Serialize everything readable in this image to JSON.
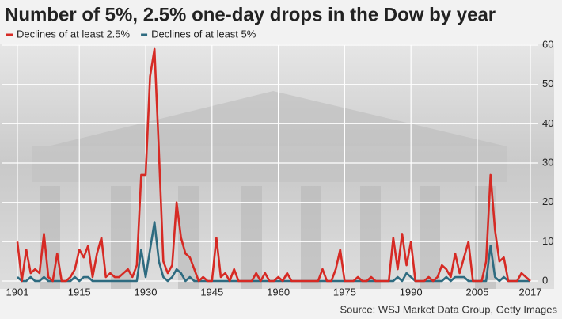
{
  "chart_data": {
    "type": "line",
    "title": "Number of 5%, 2.5% one-day drops in the Dow by year",
    "source": "Source: WSJ Market Data Group, Getty Images",
    "x": [
      1901,
      1902,
      1903,
      1904,
      1905,
      1906,
      1907,
      1908,
      1909,
      1910,
      1911,
      1912,
      1913,
      1914,
      1915,
      1916,
      1917,
      1918,
      1919,
      1920,
      1921,
      1922,
      1923,
      1924,
      1925,
      1926,
      1927,
      1928,
      1929,
      1930,
      1931,
      1932,
      1933,
      1934,
      1935,
      1936,
      1937,
      1938,
      1939,
      1940,
      1941,
      1942,
      1943,
      1944,
      1945,
      1946,
      1947,
      1948,
      1949,
      1950,
      1951,
      1952,
      1953,
      1954,
      1955,
      1956,
      1957,
      1958,
      1959,
      1960,
      1961,
      1962,
      1963,
      1964,
      1965,
      1966,
      1967,
      1968,
      1969,
      1970,
      1971,
      1972,
      1973,
      1974,
      1975,
      1976,
      1977,
      1978,
      1979,
      1980,
      1981,
      1982,
      1983,
      1984,
      1985,
      1986,
      1987,
      1988,
      1989,
      1990,
      1991,
      1992,
      1993,
      1994,
      1995,
      1996,
      1997,
      1998,
      1999,
      2000,
      2001,
      2002,
      2003,
      2004,
      2005,
      2006,
      2007,
      2008,
      2009,
      2010,
      2011,
      2012,
      2013,
      2014,
      2015,
      2016,
      2017
    ],
    "series": [
      {
        "name": "Declines of at least 2.5%",
        "color": "#d62a24",
        "values": [
          10,
          0,
          8,
          2,
          3,
          2,
          12,
          1,
          0,
          7,
          0,
          0,
          1,
          3,
          8,
          6,
          9,
          1,
          7,
          11,
          1,
          2,
          1,
          1,
          2,
          3,
          1,
          4,
          27,
          27,
          52,
          59,
          33,
          5,
          2,
          4,
          20,
          11,
          7,
          6,
          3,
          0,
          1,
          0,
          0,
          11,
          1,
          2,
          0,
          3,
          0,
          0,
          0,
          0,
          2,
          0,
          2,
          0,
          0,
          1,
          0,
          2,
          0,
          0,
          0,
          0,
          0,
          0,
          0,
          3,
          0,
          0,
          3,
          8,
          0,
          0,
          0,
          1,
          0,
          0,
          1,
          0,
          0,
          0,
          0,
          11,
          3,
          12,
          4,
          10,
          0,
          0,
          0,
          1,
          0,
          1,
          4,
          3,
          1,
          7,
          2,
          6,
          10,
          0,
          0,
          0,
          5,
          27,
          13,
          5,
          6,
          0,
          0,
          0,
          2,
          1,
          0
        ]
      },
      {
        "name": "Declines of at least 5%",
        "color": "#2e6b80",
        "values": [
          1,
          0,
          0,
          1,
          0,
          0,
          1,
          0,
          0,
          0,
          0,
          0,
          0,
          1,
          0,
          1,
          1,
          0,
          0,
          0,
          0,
          0,
          0,
          0,
          0,
          0,
          0,
          0,
          8,
          1,
          8,
          15,
          5,
          1,
          0,
          1,
          3,
          2,
          0,
          1,
          0,
          0,
          0,
          0,
          0,
          0,
          0,
          0,
          0,
          0,
          0,
          0,
          0,
          0,
          0,
          0,
          0,
          0,
          0,
          0,
          0,
          0,
          0,
          0,
          0,
          0,
          0,
          0,
          0,
          0,
          0,
          0,
          0,
          0,
          0,
          0,
          0,
          0,
          0,
          0,
          0,
          0,
          0,
          0,
          0,
          0,
          1,
          0,
          2,
          1,
          0,
          0,
          0,
          0,
          0,
          0,
          0,
          1,
          0,
          1,
          1,
          1,
          0,
          0,
          0,
          0,
          0,
          9,
          1,
          0,
          1,
          0,
          0,
          0,
          0,
          0,
          0
        ]
      }
    ],
    "xlim": [
      1901,
      2017
    ],
    "xticks": [
      1901,
      1915,
      1930,
      1945,
      1960,
      1975,
      1990,
      2005,
      2017
    ],
    "ylim": [
      0,
      60
    ],
    "yticks": [
      0,
      10,
      20,
      30,
      40,
      50,
      60
    ],
    "grid": true
  }
}
